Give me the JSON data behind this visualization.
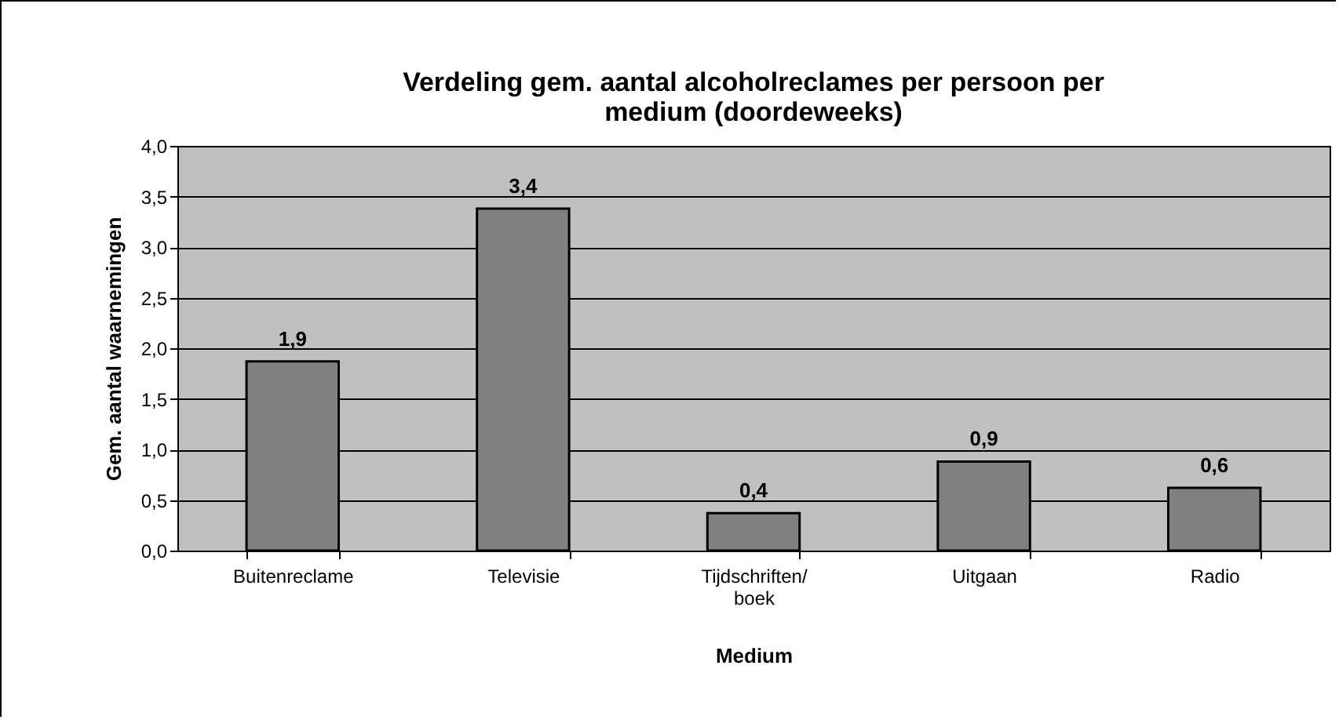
{
  "chart_data": {
    "type": "bar",
    "title": "Verdeling gem. aantal alcoholreclames per persoon per medium (doordeweeks)",
    "xlabel": "Medium",
    "ylabel": "Gem. aantal waarnemingen",
    "categories": [
      "Buitenreclame",
      "Televisie",
      "Tijdschriften/ boek",
      "Uitgaan",
      "Radio"
    ],
    "values": [
      1.87,
      3.38,
      0.37,
      0.88,
      0.62
    ],
    "value_labels": [
      "1,9",
      "3,4",
      "0,4",
      "0,9",
      "0,6"
    ],
    "color": "#808080",
    "ylim": [
      0,
      4
    ],
    "yticks": [
      {
        "value": 0,
        "label": "0,0"
      },
      {
        "value": 0.5,
        "label": "0,5"
      },
      {
        "value": 1,
        "label": "1,0"
      },
      {
        "value": 1.5,
        "label": "1,5"
      },
      {
        "value": 2,
        "label": "2,0"
      },
      {
        "value": 2.5,
        "label": "2,5"
      },
      {
        "value": 3,
        "label": "3,0"
      },
      {
        "value": 3.5,
        "label": "3,5"
      },
      {
        "value": 4,
        "label": "4,0"
      }
    ],
    "grid": true
  }
}
